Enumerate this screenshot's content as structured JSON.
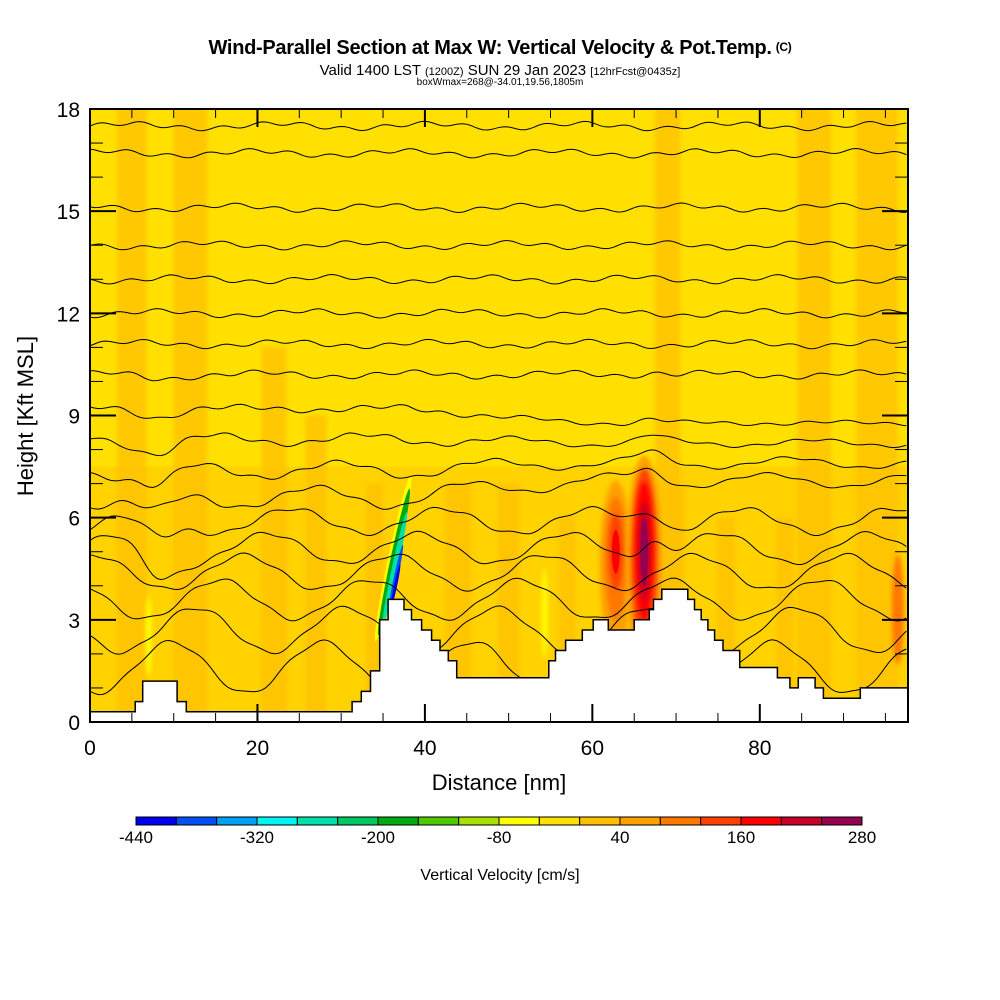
{
  "header": {
    "title": "Wind-Parallel Section at Max W: Vertical Velocity & Pot.Temp.",
    "copyright": "(C)",
    "valid_prefix": "Valid 1400 LST",
    "valid_utc": "(1200Z)",
    "valid_date": "SUN 29 Jan 2023",
    "forecast": "[12hrFcst@0435z]",
    "boxwmax": "boxWmax=268@-34.01,19.56,1805m"
  },
  "chart_data": {
    "type": "heatmap",
    "title": "Wind-Parallel Section at Max W: Vertical Velocity & Pot.Temp.",
    "xlabel": "Distance [nm]",
    "ylabel": "Height [Kft MSL]",
    "xlim": [
      0,
      97.7
    ],
    "ylim": [
      0,
      18
    ],
    "x_ticks": [
      "0",
      "20",
      "40",
      "60",
      "80"
    ],
    "x_tick_values": [
      0,
      20,
      40,
      60,
      80
    ],
    "x_minor_step": 5,
    "y_ticks": [
      "0",
      "3",
      "6",
      "9",
      "12",
      "15",
      "18"
    ],
    "y_tick_values": [
      0,
      3,
      6,
      9,
      12,
      15,
      18
    ],
    "y_minor_step": 1,
    "background_value_color": "#ffe000",
    "colorbar": {
      "title": "Vertical Velocity [cm/s]",
      "min": -440,
      "max": 280,
      "step": 40,
      "tick_labels": [
        "-440",
        "-320",
        "-200",
        "-80",
        "40",
        "160",
        "280"
      ],
      "tick_values": [
        -440,
        -320,
        -200,
        -80,
        40,
        160,
        280
      ],
      "colors": [
        "#0000f0",
        "#0050f5",
        "#00a0f5",
        "#00f5f5",
        "#00e0a8",
        "#00c860",
        "#00aa10",
        "#50c800",
        "#a8e000",
        "#ffff00",
        "#ffe000",
        "#ffc000",
        "#ffa000",
        "#ff7800",
        "#ff4000",
        "#ff0000",
        "#c80028",
        "#960050"
      ]
    },
    "terrain": {
      "x": [
        0,
        5.4,
        5.4,
        6.3,
        6.3,
        10.4,
        10.4,
        11.5,
        11.5,
        31.3,
        31.3,
        32.4,
        32.4,
        33.5,
        33.5,
        34.6,
        34.6,
        35.6,
        35.6,
        37.5,
        37.5,
        38.4,
        38.4,
        39.6,
        39.6,
        40.8,
        40.8,
        41.8,
        41.8,
        42.8,
        42.8,
        43.8,
        43.8,
        54.8,
        54.8,
        55.6,
        55.6,
        56.8,
        56.8,
        58.8,
        58.8,
        60.1,
        60.1,
        61.9,
        61.9,
        65.0,
        65.0,
        66.8,
        66.8,
        67.3,
        67.3,
        68.3,
        68.3,
        71.4,
        71.4,
        72.2,
        72.2,
        73.0,
        73.0,
        73.8,
        73.8,
        74.6,
        74.6,
        75.6,
        75.6,
        77.6,
        77.6,
        80.3,
        80.3,
        82.1,
        82.1,
        83.6,
        83.6,
        84.6,
        84.6,
        86.6,
        86.6,
        87.6,
        87.6,
        92.0,
        92.0,
        97.7,
        97.7
      ],
      "y": [
        0.3,
        0.3,
        0.6,
        0.6,
        1.2,
        1.2,
        0.6,
        0.6,
        0.3,
        0.3,
        0.6,
        0.6,
        0.9,
        0.9,
        1.5,
        1.5,
        3.0,
        3.0,
        3.6,
        3.6,
        3.3,
        3.3,
        3.0,
        3.0,
        2.7,
        2.7,
        2.4,
        2.4,
        2.1,
        2.1,
        1.8,
        1.8,
        1.3,
        1.3,
        1.8,
        1.8,
        2.1,
        2.1,
        2.4,
        2.4,
        2.7,
        2.7,
        3.0,
        3.0,
        2.7,
        2.7,
        3.0,
        3.0,
        3.3,
        3.3,
        3.6,
        3.6,
        3.9,
        3.9,
        3.6,
        3.6,
        3.3,
        3.3,
        3.0,
        3.0,
        2.7,
        2.7,
        2.4,
        2.4,
        2.1,
        2.1,
        1.6,
        1.6,
        1.6,
        1.6,
        1.3,
        1.3,
        1.0,
        1.0,
        1.3,
        1.3,
        1.0,
        1.0,
        0.7,
        0.7,
        1.0,
        1.0,
        0.0
      ]
    },
    "features": [
      {
        "name": "downdraft-core",
        "x": 36.5,
        "y": 4.2,
        "value": -440
      },
      {
        "name": "updraft-core",
        "x": 66.2,
        "y": 5.0,
        "value": 268
      },
      {
        "name": "updraft-secondary",
        "x": 62.8,
        "y": 5.0,
        "value": 180
      },
      {
        "name": "weak-updraft-left",
        "x": 7.0,
        "y": 3.0,
        "value": -60
      },
      {
        "name": "weak-updraft-mid",
        "x": 54.3,
        "y": 3.5,
        "value": -60
      }
    ],
    "contour_series": [
      {
        "name": "pot-temp",
        "heights_left": [
          17.5,
          16.7,
          15.1,
          14.0,
          13.0,
          12.0,
          11.1,
          10.2,
          9.2,
          8.3,
          7.4,
          6.6,
          5.9,
          5.1,
          4.4,
          3.6,
          2.7,
          1.6
        ]
      }
    ]
  },
  "colors": {
    "axis": "#000000",
    "terrain": "#ffffff",
    "contour": "#000000"
  }
}
